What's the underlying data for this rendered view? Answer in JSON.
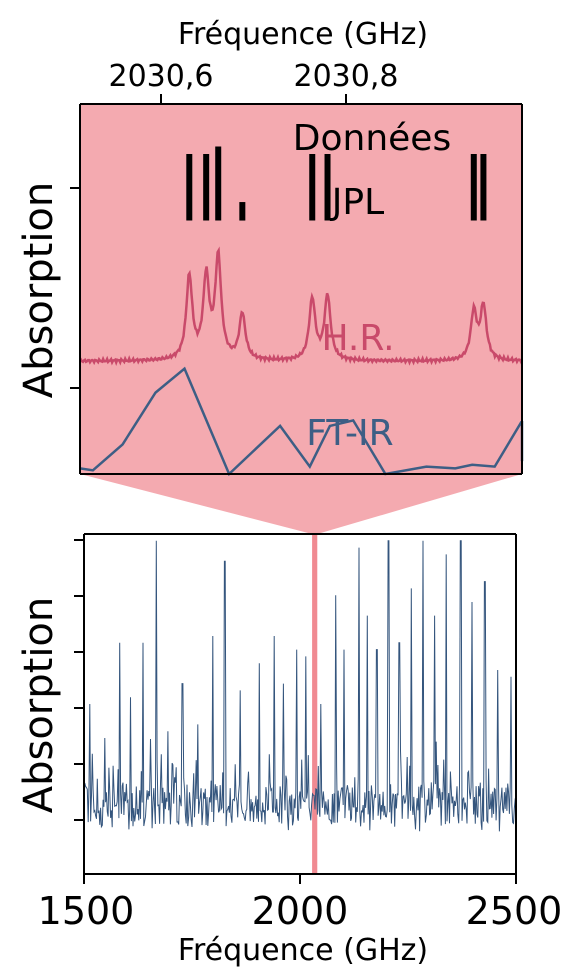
{
  "colors": {
    "zoom_fill": "#f4aab0",
    "hr_line": "#c94a6a",
    "ftir_line": "#3d5e85",
    "spectrum_line": "#34557d",
    "highlight_band": "#f08a92",
    "jpl_bars": "#000000"
  },
  "chart_data": [
    {
      "name": "zoom-panel",
      "type": "line",
      "title": "",
      "xlabel": "Fréquence (GHz)",
      "ylabel": "Absorption",
      "x_axis_position": "top",
      "xlim": [
        2030.45,
        2031.0
      ],
      "ylim": [
        0,
        1
      ],
      "xticks": [
        2030.6,
        2030.8
      ],
      "xtick_labels": [
        "2030,6",
        "2030,8"
      ],
      "ytick_count": 2,
      "grid": false,
      "annotations": {
        "donnees": "Données",
        "jpl": "JPL",
        "hr": "H.R.",
        "ftir": "FT-IR"
      },
      "jpl_lines": [
        {
          "x": 2030.586,
          "ymin": 0.685,
          "ymax": 0.865
        },
        {
          "x": 2030.607,
          "ymin": 0.685,
          "ymax": 0.865
        },
        {
          "x": 2030.622,
          "ymin": 0.685,
          "ymax": 0.885
        },
        {
          "x": 2030.652,
          "ymin": 0.685,
          "ymax": 0.735
        },
        {
          "x": 2030.739,
          "ymin": 0.685,
          "ymax": 0.865
        },
        {
          "x": 2030.758,
          "ymin": 0.685,
          "ymax": 0.865
        },
        {
          "x": 2030.94,
          "ymin": 0.685,
          "ymax": 0.865
        },
        {
          "x": 2030.952,
          "ymin": 0.685,
          "ymax": 0.865
        }
      ],
      "series": [
        {
          "name": "H.R.",
          "baseline": 0.305,
          "peaks": [
            {
              "x": 2030.586,
              "height": 0.225
            },
            {
              "x": 2030.607,
              "height": 0.22
            },
            {
              "x": 2030.622,
              "height": 0.275
            },
            {
              "x": 2030.652,
              "height": 0.125
            },
            {
              "x": 2030.739,
              "height": 0.165
            },
            {
              "x": 2030.758,
              "height": 0.175
            },
            {
              "x": 2030.94,
              "height": 0.13
            },
            {
              "x": 2030.952,
              "height": 0.145
            }
          ]
        },
        {
          "name": "FT-IR",
          "x": [
            2030.45,
            2030.466,
            2030.503,
            2030.544,
            2030.58,
            2030.6355,
            2030.699,
            2030.736,
            2030.761,
            2030.79,
            2030.83,
            2030.881,
            2030.917,
            2030.938,
            2030.966,
            2030.999,
            2031.007,
            2031.045
          ],
          "y": [
            0.015,
            0.01,
            0.08,
            0.22,
            0.285,
            0.0,
            0.13,
            0.02,
            0.13,
            0.145,
            0.0,
            0.02,
            0.015,
            0.025,
            0.02,
            0.14,
            0.14,
            0.035
          ]
        }
      ]
    },
    {
      "name": "full-spectrum-panel",
      "type": "line",
      "title": "",
      "xlabel": "Fréquence (GHz)",
      "ylabel": "Absorption",
      "xlim": [
        1500,
        2500
      ],
      "ylim": [
        0,
        1
      ],
      "xticks": [
        1500,
        2000,
        2500
      ],
      "xtick_labels": [
        "1500",
        "2000",
        "2500"
      ],
      "ytick_count": 6,
      "grid": false,
      "highlight_band": [
        2028,
        2040
      ],
      "series": [
        {
          "name": "spectrum",
          "baseline": 0.2,
          "noise_amplitude": 0.08,
          "n_points": 520,
          "peaks": [
            {
              "x": 1514,
              "height": 0.3
            },
            {
              "x": 1548,
              "height": 0.2
            },
            {
              "x": 1582,
              "height": 0.48
            },
            {
              "x": 1607,
              "height": 0.32
            },
            {
              "x": 1636,
              "height": 0.48
            },
            {
              "x": 1668,
              "height": 0.78
            },
            {
              "x": 1694,
              "height": 0.22
            },
            {
              "x": 1728,
              "height": 0.36
            },
            {
              "x": 1764,
              "height": 0.24
            },
            {
              "x": 1798,
              "height": 0.5
            },
            {
              "x": 1826,
              "height": 0.72
            },
            {
              "x": 1862,
              "height": 0.34
            },
            {
              "x": 1906,
              "height": 0.42
            },
            {
              "x": 1941,
              "height": 0.5
            },
            {
              "x": 1962,
              "height": 0.36
            },
            {
              "x": 1992,
              "height": 0.46
            },
            {
              "x": 2014,
              "height": 0.44
            },
            {
              "x": 2048,
              "height": 0.3
            },
            {
              "x": 2082,
              "height": 0.62
            },
            {
              "x": 2102,
              "height": 0.46
            },
            {
              "x": 2136,
              "height": 0.76
            },
            {
              "x": 2156,
              "height": 0.56
            },
            {
              "x": 2178,
              "height": 0.46
            },
            {
              "x": 2205,
              "height": 0.84
            },
            {
              "x": 2230,
              "height": 0.48
            },
            {
              "x": 2258,
              "height": 0.64
            },
            {
              "x": 2284,
              "height": 0.82
            },
            {
              "x": 2312,
              "height": 0.56
            },
            {
              "x": 2338,
              "height": 0.74
            },
            {
              "x": 2372,
              "height": 0.84
            },
            {
              "x": 2398,
              "height": 0.6
            },
            {
              "x": 2428,
              "height": 0.66
            },
            {
              "x": 2458,
              "height": 0.4
            },
            {
              "x": 2488,
              "height": 0.38
            }
          ]
        }
      ]
    }
  ]
}
